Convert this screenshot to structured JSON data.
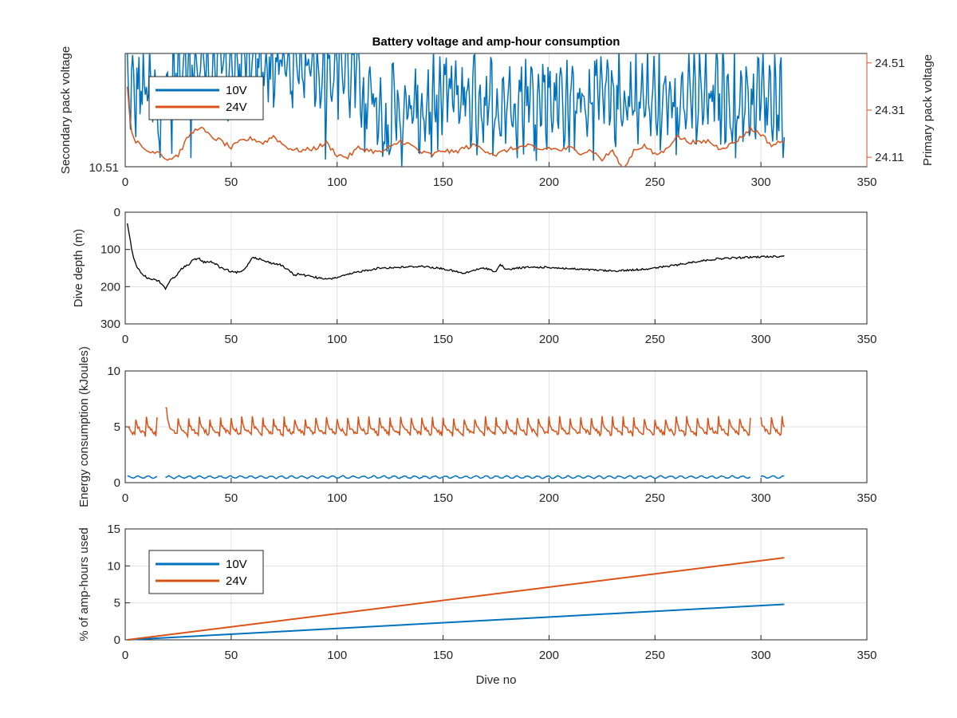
{
  "colors": {
    "s10": "#0072BD",
    "s24": "#D95319",
    "depth": "#000000",
    "axis": "#262626",
    "grid": "#e0e0e0"
  },
  "chart_data": [
    {
      "type": "line",
      "title": "Battery voltage and amp-hour consumption",
      "xlabel": "",
      "ylabel": "Secondary pack voltage",
      "ylabel_right": "Primary pack voltage",
      "xlim": [
        0,
        350
      ],
      "x_ticks": [
        "0",
        "50",
        "100",
        "150",
        "200",
        "250",
        "300",
        "350"
      ],
      "y_ticks_left": [
        "10.51"
      ],
      "y_ticks_right": [
        "24.11",
        "24.31",
        "24.51"
      ],
      "ylim_right": [
        24.07,
        24.55
      ],
      "legend": {
        "location": "top-left",
        "entries": [
          "10V",
          "24V"
        ]
      },
      "series": [
        {
          "name": "10V",
          "axis": "left",
          "style": "noisy oscillation near top of axis, drifts slightly lower after dive 100",
          "x": [
            0,
            3,
            8,
            15,
            20,
            27,
            35,
            45,
            55,
            65,
            75,
            85,
            95,
            105,
            115,
            120,
            130,
            140,
            150,
            160,
            170,
            180,
            190,
            200,
            210,
            220,
            230,
            240,
            250,
            260,
            270,
            280,
            290,
            300,
            305,
            311
          ],
          "y": [
            0.8,
            0.6,
            0.7,
            0.55,
            0.6,
            0.95,
            0.92,
            0.9,
            0.92,
            0.9,
            0.92,
            0.9,
            0.92,
            0.88,
            0.72,
            0.5,
            0.45,
            0.48,
            0.65,
            0.62,
            0.55,
            0.58,
            0.6,
            0.62,
            0.55,
            0.6,
            0.58,
            0.6,
            0.58,
            0.56,
            0.58,
            0.62,
            0.58,
            0.64,
            0.62,
            0.55
          ]
        },
        {
          "name": "24V",
          "axis": "right",
          "x": [
            0,
            1,
            3,
            5,
            8,
            12,
            15,
            20,
            25,
            30,
            35,
            40,
            45,
            50,
            55,
            60,
            65,
            70,
            75,
            80,
            85,
            90,
            95,
            100,
            105,
            110,
            115,
            120,
            125,
            130,
            135,
            140,
            145,
            150,
            155,
            160,
            165,
            170,
            175,
            180,
            185,
            190,
            195,
            200,
            205,
            210,
            215,
            220,
            225,
            230,
            235,
            240,
            245,
            250,
            255,
            260,
            265,
            270,
            275,
            280,
            285,
            290,
            295,
            300,
            305,
            311
          ],
          "y": [
            24.55,
            24.4,
            24.22,
            24.18,
            24.15,
            24.13,
            24.14,
            24.1,
            24.12,
            24.2,
            24.24,
            24.2,
            24.18,
            24.15,
            24.18,
            24.19,
            24.17,
            24.2,
            24.16,
            24.14,
            24.14,
            24.15,
            24.17,
            24.12,
            24.11,
            24.15,
            24.14,
            24.13,
            24.15,
            24.18,
            24.16,
            24.13,
            24.12,
            24.14,
            24.13,
            24.15,
            24.16,
            24.14,
            24.12,
            24.14,
            24.15,
            24.16,
            24.14,
            24.15,
            24.14,
            24.15,
            24.13,
            24.14,
            24.1,
            24.14,
            24.05,
            24.14,
            24.16,
            24.12,
            24.14,
            24.2,
            24.18,
            24.17,
            24.18,
            24.15,
            24.16,
            24.19,
            24.23,
            24.21,
            24.16,
            24.18
          ]
        }
      ]
    },
    {
      "type": "line",
      "xlabel": "",
      "ylabel": "Dive depth (m)",
      "xlim": [
        0,
        350
      ],
      "ylim": [
        0,
        300
      ],
      "y_reversed": true,
      "x_ticks": [
        "0",
        "50",
        "100",
        "150",
        "200",
        "250",
        "300",
        "350"
      ],
      "y_ticks": [
        "0",
        "100",
        "200",
        "300"
      ],
      "series": [
        {
          "x": [
            0,
            1,
            2,
            3,
            4,
            5,
            7,
            10,
            13,
            16,
            19,
            21,
            24,
            27,
            30,
            32,
            35,
            37,
            40,
            43,
            45,
            48,
            50,
            52,
            55,
            58,
            60,
            63,
            66,
            70,
            73,
            75,
            78,
            80,
            82,
            85,
            88,
            92,
            96,
            100,
            105,
            110,
            115,
            120,
            130,
            140,
            150,
            155,
            160,
            165,
            170,
            175,
            177,
            180,
            185,
            190,
            200,
            210,
            220,
            230,
            240,
            250,
            260,
            270,
            280,
            290,
            300,
            311
          ],
          "y": [
            15,
            30,
            60,
            100,
            125,
            140,
            160,
            175,
            180,
            185,
            205,
            185,
            170,
            150,
            140,
            128,
            125,
            135,
            132,
            140,
            150,
            155,
            160,
            162,
            160,
            140,
            120,
            125,
            132,
            138,
            140,
            148,
            160,
            170,
            165,
            170,
            172,
            178,
            180,
            175,
            168,
            160,
            155,
            150,
            148,
            145,
            152,
            158,
            165,
            155,
            150,
            160,
            140,
            155,
            150,
            148,
            148,
            152,
            155,
            158,
            155,
            150,
            142,
            132,
            125,
            122,
            120,
            118
          ]
        }
      ]
    },
    {
      "type": "line",
      "xlabel": "",
      "ylabel": "Energy consumption (kJoules)",
      "xlim": [
        0,
        350
      ],
      "ylim": [
        0,
        10
      ],
      "x_ticks": [
        "0",
        "50",
        "100",
        "150",
        "200",
        "250",
        "300",
        "350"
      ],
      "y_ticks": [
        "0",
        "5",
        "10"
      ],
      "series": [
        {
          "name": "24V",
          "style": "saw-tooth, baseline about 4.2 with peaks about 5.8 every 5 dives; gaps near dives 16-18 and 296-300",
          "baseline": 4.2,
          "peak": 5.8,
          "x_range": [
            1,
            311
          ],
          "gaps": [
            [
              15,
              19
            ],
            [
              295,
              300
            ]
          ]
        },
        {
          "name": "10V",
          "style": "flat near 0.5 with small ripple",
          "level": 0.5,
          "x_range": [
            1,
            311
          ],
          "gaps": [
            [
              15,
              19
            ],
            [
              295,
              300
            ]
          ]
        }
      ]
    },
    {
      "type": "line",
      "xlabel": "Dive no",
      "ylabel": "% of amp-hours used",
      "xlim": [
        0,
        350
      ],
      "ylim": [
        0,
        15
      ],
      "x_ticks": [
        "0",
        "50",
        "100",
        "150",
        "200",
        "250",
        "300",
        "350"
      ],
      "y_ticks": [
        "0",
        "5",
        "10",
        "15"
      ],
      "legend": {
        "location": "top-left",
        "entries": [
          "10V",
          "24V"
        ]
      },
      "series": [
        {
          "name": "10V",
          "x": [
            1,
            311
          ],
          "y": [
            0,
            4.8
          ]
        },
        {
          "name": "24V",
          "x": [
            1,
            311
          ],
          "y": [
            0,
            11.1
          ]
        }
      ]
    }
  ]
}
